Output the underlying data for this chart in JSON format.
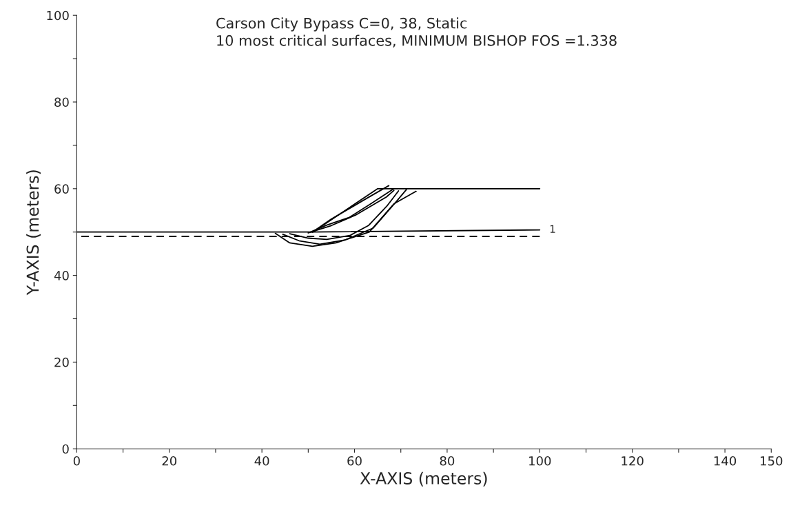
{
  "chart_data": {
    "type": "line",
    "title": "Carson City Bypass C=0, 38, Static",
    "subtitle": "10 most critical surfaces, MINIMUM BISHOP FOS =1.338",
    "xlabel": "X-AXIS (meters)",
    "ylabel": "Y-AXIS (meters)",
    "xlim": [
      0,
      150
    ],
    "ylim": [
      0,
      100
    ],
    "xticks": [
      0,
      {
        "value": 10,
        "label": null
      },
      20,
      {
        "value": 30,
        "label": null
      },
      40,
      {
        "value": 50,
        "label": null
      },
      60,
      {
        "value": 70,
        "label": null
      },
      80,
      {
        "value": 90,
        "label": null
      },
      100,
      {
        "value": 110,
        "label": null
      },
      120,
      {
        "value": 130,
        "label": null
      },
      140,
      150
    ],
    "yticks": [
      0,
      {
        "value": 10,
        "label": null
      },
      20,
      {
        "value": 30,
        "label": null
      },
      40,
      {
        "value": 50,
        "label": null
      },
      60,
      {
        "value": 70,
        "label": null
      },
      80,
      {
        "value": 90,
        "label": null
      },
      100
    ],
    "grid": false,
    "marker": "none",
    "series": [
      {
        "color": "#000000",
        "line_style": "solid",
        "x": [
          0,
          51,
          65,
          100
        ],
        "values": [
          50,
          50,
          60,
          60
        ]
      },
      {
        "color": "#000000",
        "line_style": "solid",
        "x": [
          51,
          100
        ],
        "values": [
          50,
          50.5
        ]
      },
      {
        "color": "#000000",
        "line_style": "dashed",
        "x": [
          1,
          100
        ],
        "values": [
          49,
          49
        ]
      },
      {
        "color": "#000000",
        "line_style": "solid",
        "x": [
          42.9,
          46,
          50.9,
          56,
          63.2,
          68.5,
          73.3
        ],
        "values": [
          49.7,
          47.5,
          46.7,
          47.5,
          50,
          56.5,
          59.4
        ]
      },
      {
        "color": "#000000",
        "line_style": "solid",
        "x": [
          44.5,
          48,
          52.5,
          58,
          64,
          69,
          71.2
        ],
        "values": [
          49.5,
          48,
          47.2,
          48.2,
          50.9,
          57,
          59.8
        ]
      },
      {
        "color": "#000000",
        "line_style": "solid",
        "x": [
          46,
          50,
          54,
          59,
          63,
          67,
          69.5
        ],
        "values": [
          49.6,
          48.6,
          48.3,
          49.2,
          51.5,
          56,
          59.5
        ]
      },
      {
        "color": "#000000",
        "line_style": "solid",
        "x": [
          50.9,
          55,
          59,
          63,
          67.4
        ],
        "values": [
          50,
          53,
          55.5,
          58,
          60.7
        ]
      },
      {
        "color": "#000000",
        "line_style": "solid",
        "x": [
          50.5,
          54,
          58.9,
          63.5,
          68.5
        ],
        "values": [
          50,
          51.6,
          53.4,
          56.5,
          60
        ]
      },
      {
        "color": "#000000",
        "line_style": "solid",
        "x": [
          50,
          55,
          60.2,
          66.9,
          68.5
        ],
        "values": [
          49.8,
          51.5,
          53.9,
          58.1,
          59.6
        ]
      }
    ],
    "annotations": [
      "1"
    ]
  }
}
